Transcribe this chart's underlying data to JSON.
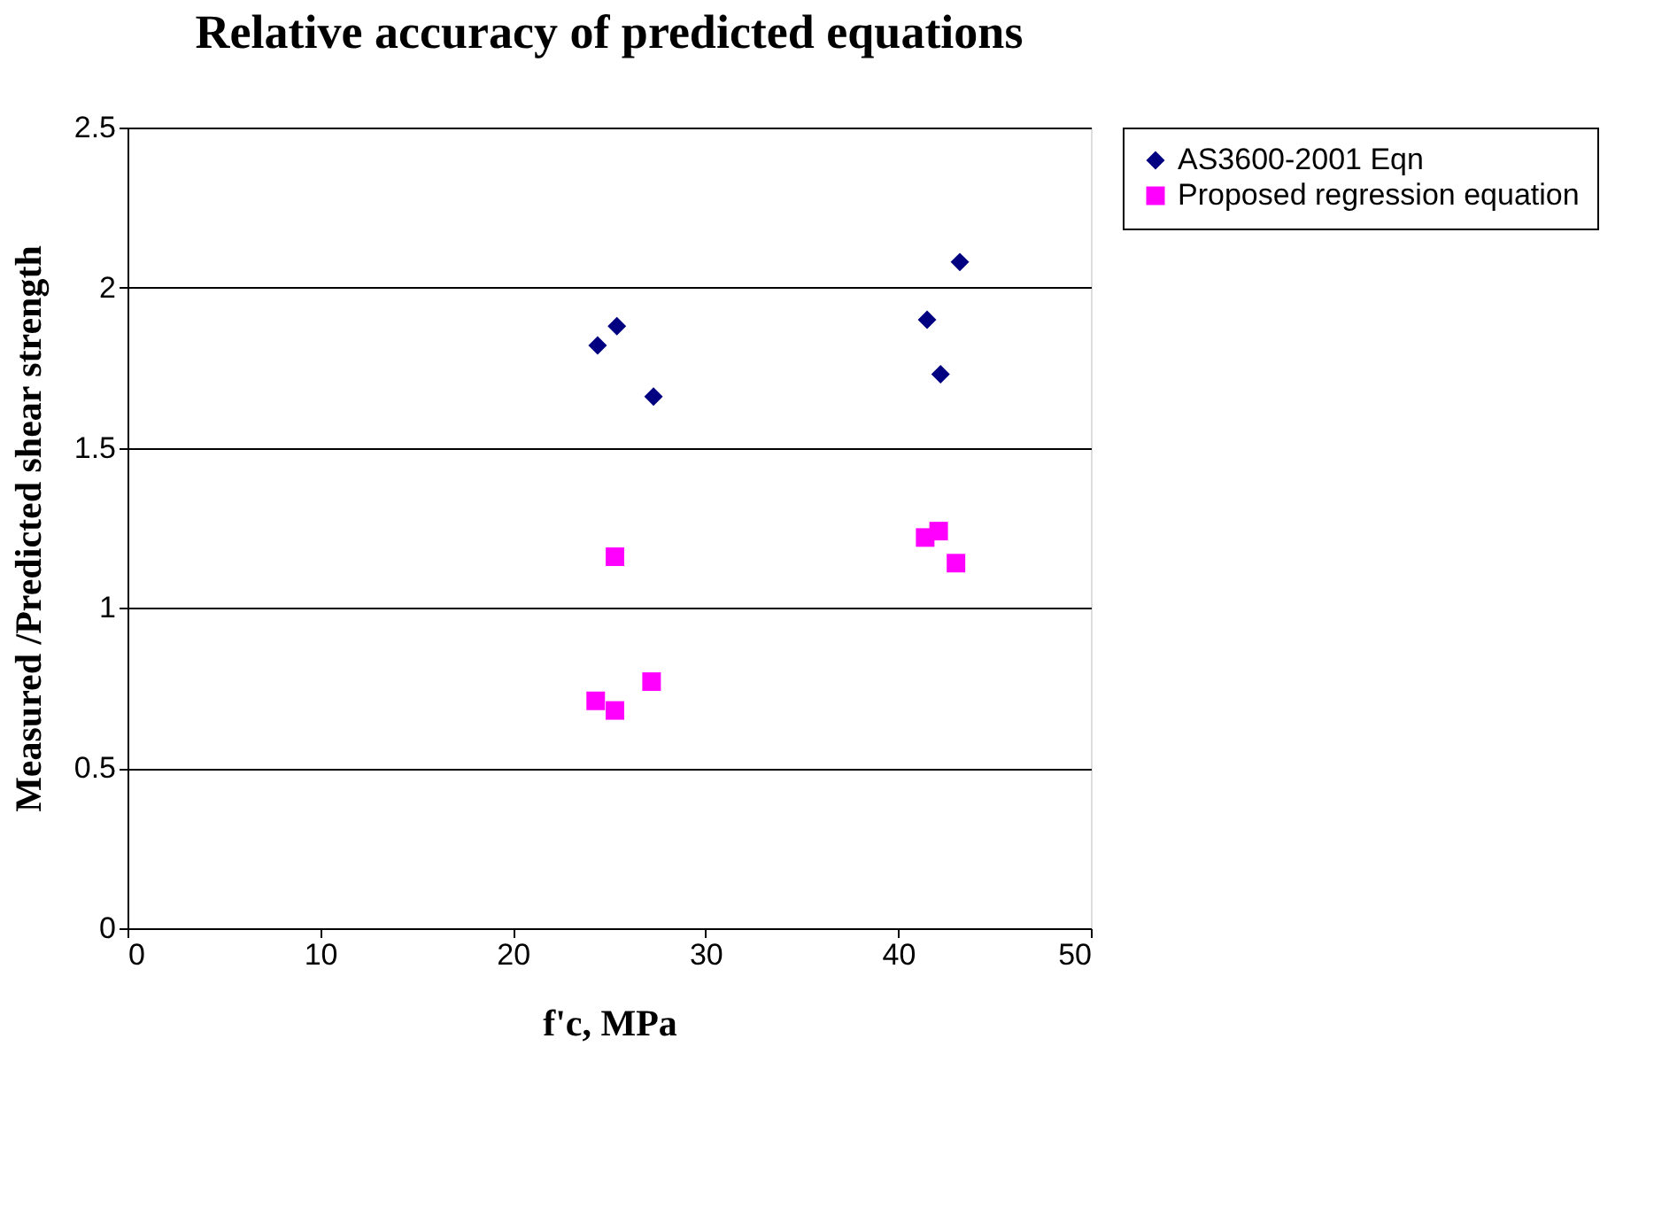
{
  "chart_data": {
    "type": "scatter",
    "title": "Relative accuracy of predicted equations",
    "xlabel": "f'c, MPa",
    "ylabel": "Measured /Predicted shear strength",
    "xlim": [
      0,
      50
    ],
    "xticks": [
      0,
      10,
      20,
      30,
      40,
      50
    ],
    "ylim": [
      0,
      2.5
    ],
    "yticks": [
      0,
      0.5,
      1,
      1.5,
      2,
      2.5
    ],
    "grid": "y",
    "legend": "right",
    "series": [
      {
        "name": "AS3600-2001 Eqn",
        "color": "#000080",
        "marker": "diamond",
        "x": [
          24.4,
          25.4,
          27.3,
          41.5,
          42.2,
          43.2
        ],
        "values": [
          1.82,
          1.88,
          1.66,
          1.9,
          1.73,
          2.08
        ]
      },
      {
        "name": "Proposed regression equation",
        "color": "#ff00ff",
        "marker": "square",
        "x": [
          24.3,
          25.3,
          25.3,
          27.2,
          41.4,
          42.1,
          43.0
        ],
        "values": [
          0.71,
          1.16,
          0.68,
          0.77,
          1.22,
          1.24,
          1.14
        ]
      }
    ]
  }
}
